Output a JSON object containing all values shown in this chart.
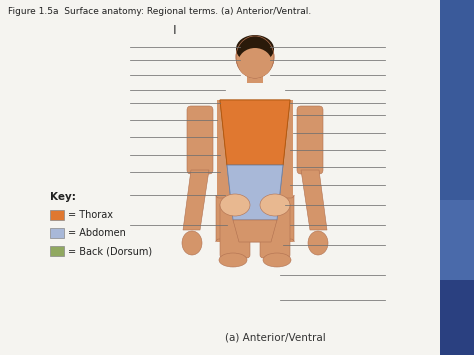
{
  "title": "Figure 1.5a  Surface anatomy: Regional terms. (a) Anterior/Ventral.",
  "caption": "(a) Anterior/Ventral",
  "key_title": "Key:",
  "legend_items": [
    {
      "label": "= Thorax",
      "color": "#E07830"
    },
    {
      "label": "= Abdomen",
      "color": "#A8B8D8"
    },
    {
      "label": "= Back (Dorsum)",
      "color": "#90A860"
    }
  ],
  "bg_color": "#E8E8E8",
  "panel_color": "#F5F4F0",
  "title_color": "#222222",
  "title_fontsize": 6.5,
  "caption_fontsize": 7.5,
  "key_fontsize": 7.5,
  "legend_fontsize": 7,
  "sidebar_colors": [
    "#3A5A9A",
    "#4A6AAA",
    "#5A7ABA",
    "#2A4A8A"
  ],
  "skin_color": "#D4956A",
  "skin_light": "#E8B890",
  "hair_color": "#2A1A0A",
  "line_color": "#707070",
  "line_width": 0.55
}
